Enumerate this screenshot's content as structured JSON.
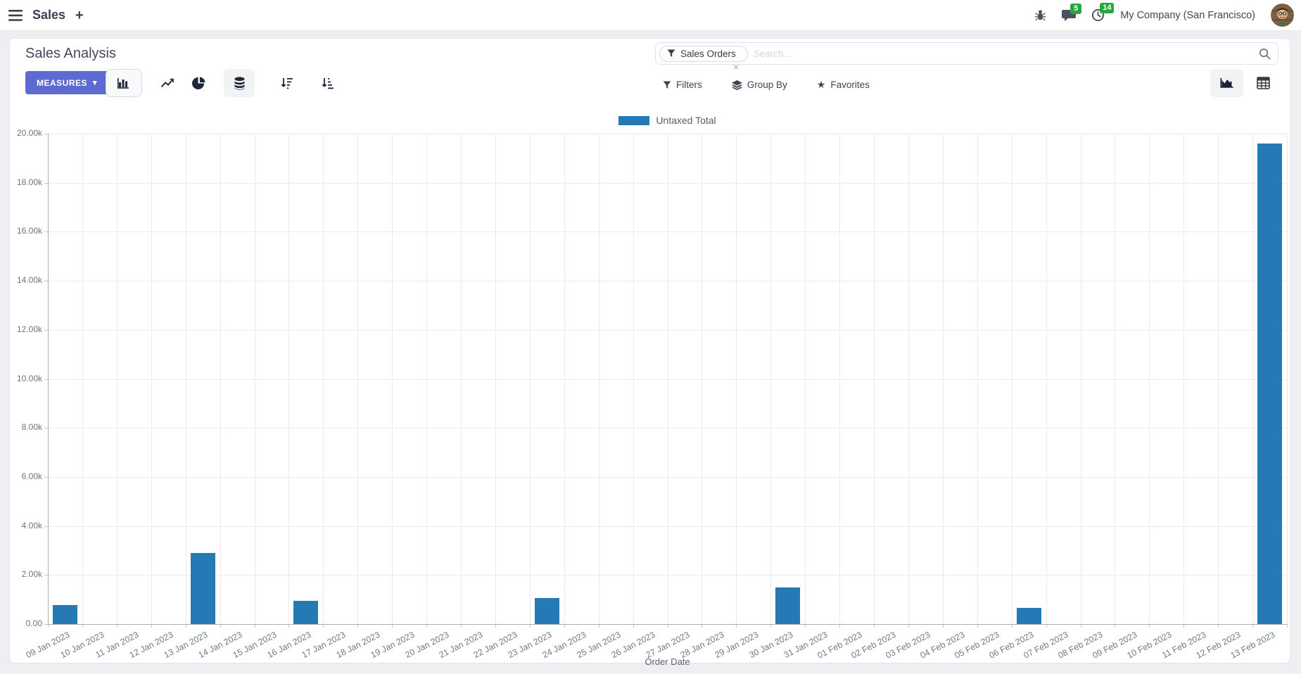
{
  "topbar": {
    "app_title": "Sales",
    "plus": "+",
    "badges": {
      "messages": "5",
      "activities": "14"
    },
    "company": "My Company (San Francisco)"
  },
  "control_panel": {
    "title": "Sales Analysis",
    "measures_label": "MEASURES",
    "caret_down": "▾",
    "search": {
      "facet_label": "Sales Orders",
      "placeholder": "Search...",
      "facet_remove": "×"
    },
    "filters_label": "Filters",
    "group_by_label": "Group By",
    "favorites_label": "Favorites",
    "star": "★"
  },
  "colors": {
    "accent": "#5C6AD2",
    "badge_green": "#2aa63a",
    "bar_blue": "#2579b5"
  },
  "chart_data": {
    "type": "bar",
    "title": "",
    "legend_position": "top",
    "grid": true,
    "xlabel": "Order Date",
    "ylabel": "",
    "ylim": [
      0,
      20000
    ],
    "ytick_step": 2000,
    "ytick_labels": [
      "0.00",
      "2.00k",
      "4.00k",
      "6.00k",
      "8.00k",
      "10.00k",
      "12.00k",
      "14.00k",
      "16.00k",
      "18.00k",
      "20.00k"
    ],
    "bar_color": "#2579b5",
    "categories": [
      "09 Jan 2023",
      "10 Jan 2023",
      "11 Jan 2023",
      "12 Jan 2023",
      "13 Jan 2023",
      "14 Jan 2023",
      "15 Jan 2023",
      "16 Jan 2023",
      "17 Jan 2023",
      "18 Jan 2023",
      "19 Jan 2023",
      "20 Jan 2023",
      "21 Jan 2023",
      "22 Jan 2023",
      "23 Jan 2023",
      "24 Jan 2023",
      "25 Jan 2023",
      "26 Jan 2023",
      "27 Jan 2023",
      "28 Jan 2023",
      "29 Jan 2023",
      "30 Jan 2023",
      "31 Jan 2023",
      "01 Feb 2023",
      "02 Feb 2023",
      "03 Feb 2023",
      "04 Feb 2023",
      "05 Feb 2023",
      "06 Feb 2023",
      "07 Feb 2023",
      "08 Feb 2023",
      "09 Feb 2023",
      "10 Feb 2023",
      "11 Feb 2023",
      "12 Feb 2023",
      "13 Feb 2023"
    ],
    "series": [
      {
        "name": "Untaxed Total",
        "values": [
          780,
          0,
          0,
          0,
          2900,
          0,
          0,
          950,
          0,
          0,
          0,
          0,
          0,
          0,
          1050,
          0,
          0,
          0,
          0,
          0,
          0,
          1500,
          0,
          0,
          0,
          0,
          0,
          0,
          650,
          0,
          0,
          0,
          0,
          0,
          0,
          19600
        ]
      }
    ]
  }
}
